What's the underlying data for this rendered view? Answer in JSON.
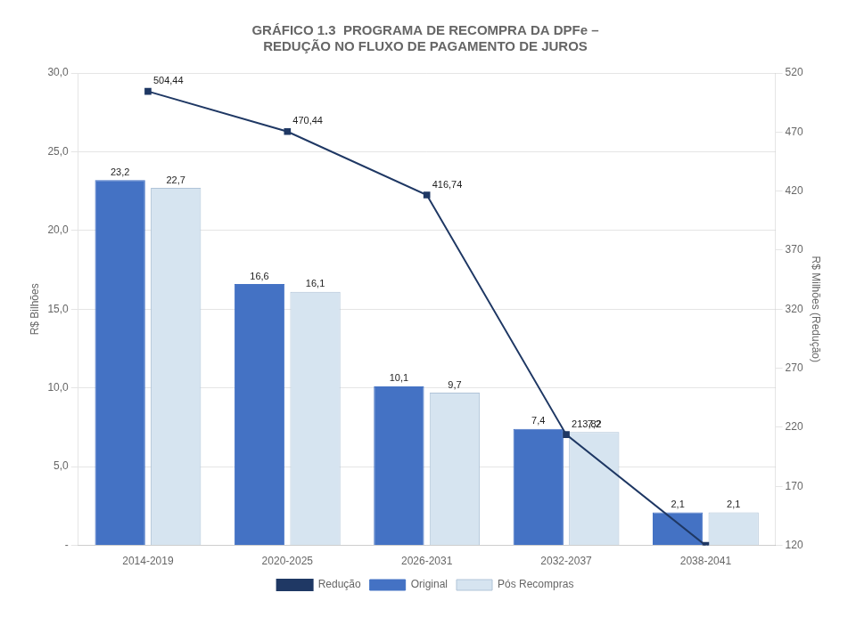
{
  "chart_data": {
    "type": "bar",
    "title": [
      "GRÁFICO 1.3  PROGRAMA DE RECOMPRA DA DPFe –",
      "REDUÇÃO NO FLUXO DE PAGAMENTO DE JUROS"
    ],
    "categories": [
      "2014-2019",
      "2020-2025",
      "2026-2031",
      "2032-2037",
      "2038-2041"
    ],
    "series": [
      {
        "name": "Original",
        "type": "bar",
        "color": "#4472C4",
        "values": [
          23.2,
          16.6,
          10.1,
          7.4,
          2.1
        ],
        "value_labels": [
          "23,2",
          "16,6",
          "10,1",
          "7,4",
          "2,1"
        ]
      },
      {
        "name": "Pós Recompras",
        "type": "bar",
        "color": "#D6E4F0",
        "values": [
          22.7,
          16.1,
          9.7,
          7.2,
          2.1
        ],
        "value_labels": [
          "22,7",
          "16,1",
          "9,7",
          "7,2",
          "2,1"
        ]
      },
      {
        "name": "Redução",
        "type": "line",
        "axis": "y2",
        "color": "#1F3864",
        "marker": "square",
        "line_style": "solid",
        "values": [
          504.44,
          470.44,
          416.74,
          213.82,
          120.0
        ],
        "value_labels": [
          "504,44",
          "470,44",
          "416,74",
          "213,82",
          null
        ]
      }
    ],
    "ylabel": "R$ Bilhões",
    "y2label": "R$ Milhões (Redução)",
    "ylim": [
      0,
      30
    ],
    "yticks": [
      {
        "value": 0,
        "label": "-"
      },
      {
        "value": 5,
        "label": "5,0"
      },
      {
        "value": 10,
        "label": "10,0"
      },
      {
        "value": 15,
        "label": "15,0"
      },
      {
        "value": 20,
        "label": "20,0"
      },
      {
        "value": 25,
        "label": "25,0"
      },
      {
        "value": 30,
        "label": "30,0"
      }
    ],
    "y2lim": [
      120,
      520
    ],
    "y2ticks": [
      120,
      170,
      220,
      270,
      320,
      370,
      420,
      470,
      520
    ],
    "grid": true,
    "legend": "bottom",
    "data_labels": true
  }
}
